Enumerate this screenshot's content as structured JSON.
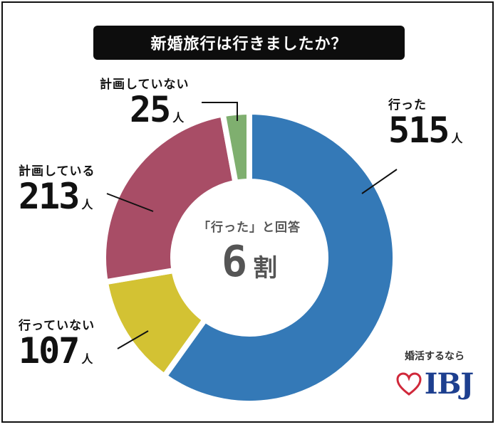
{
  "title": "新婚旅行は行きましたか？",
  "chart_data": {
    "type": "pie",
    "style": "donut",
    "categories": [
      "行った",
      "行っていない",
      "計画している",
      "計画していない"
    ],
    "values": [
      515,
      107,
      213,
      25
    ],
    "unit": "人",
    "colors": [
      "#3479b7",
      "#d3c233",
      "#a84d66",
      "#7faf6f"
    ]
  },
  "labels": [
    {
      "name": "行った",
      "value": "515",
      "unit": "人"
    },
    {
      "name": "行っていない",
      "value": "107",
      "unit": "人"
    },
    {
      "name": "計画している",
      "value": "213",
      "unit": "人"
    },
    {
      "name": "計画していない",
      "value": "25",
      "unit": "人"
    }
  ],
  "center": {
    "sub": "「行った」と回答",
    "value": "6",
    "unit": "割"
  },
  "brand": {
    "tagline": "婚活するなら",
    "logo": "IBJ",
    "logo_color": "#1d3f8f",
    "heart_color": "#d0283a"
  }
}
